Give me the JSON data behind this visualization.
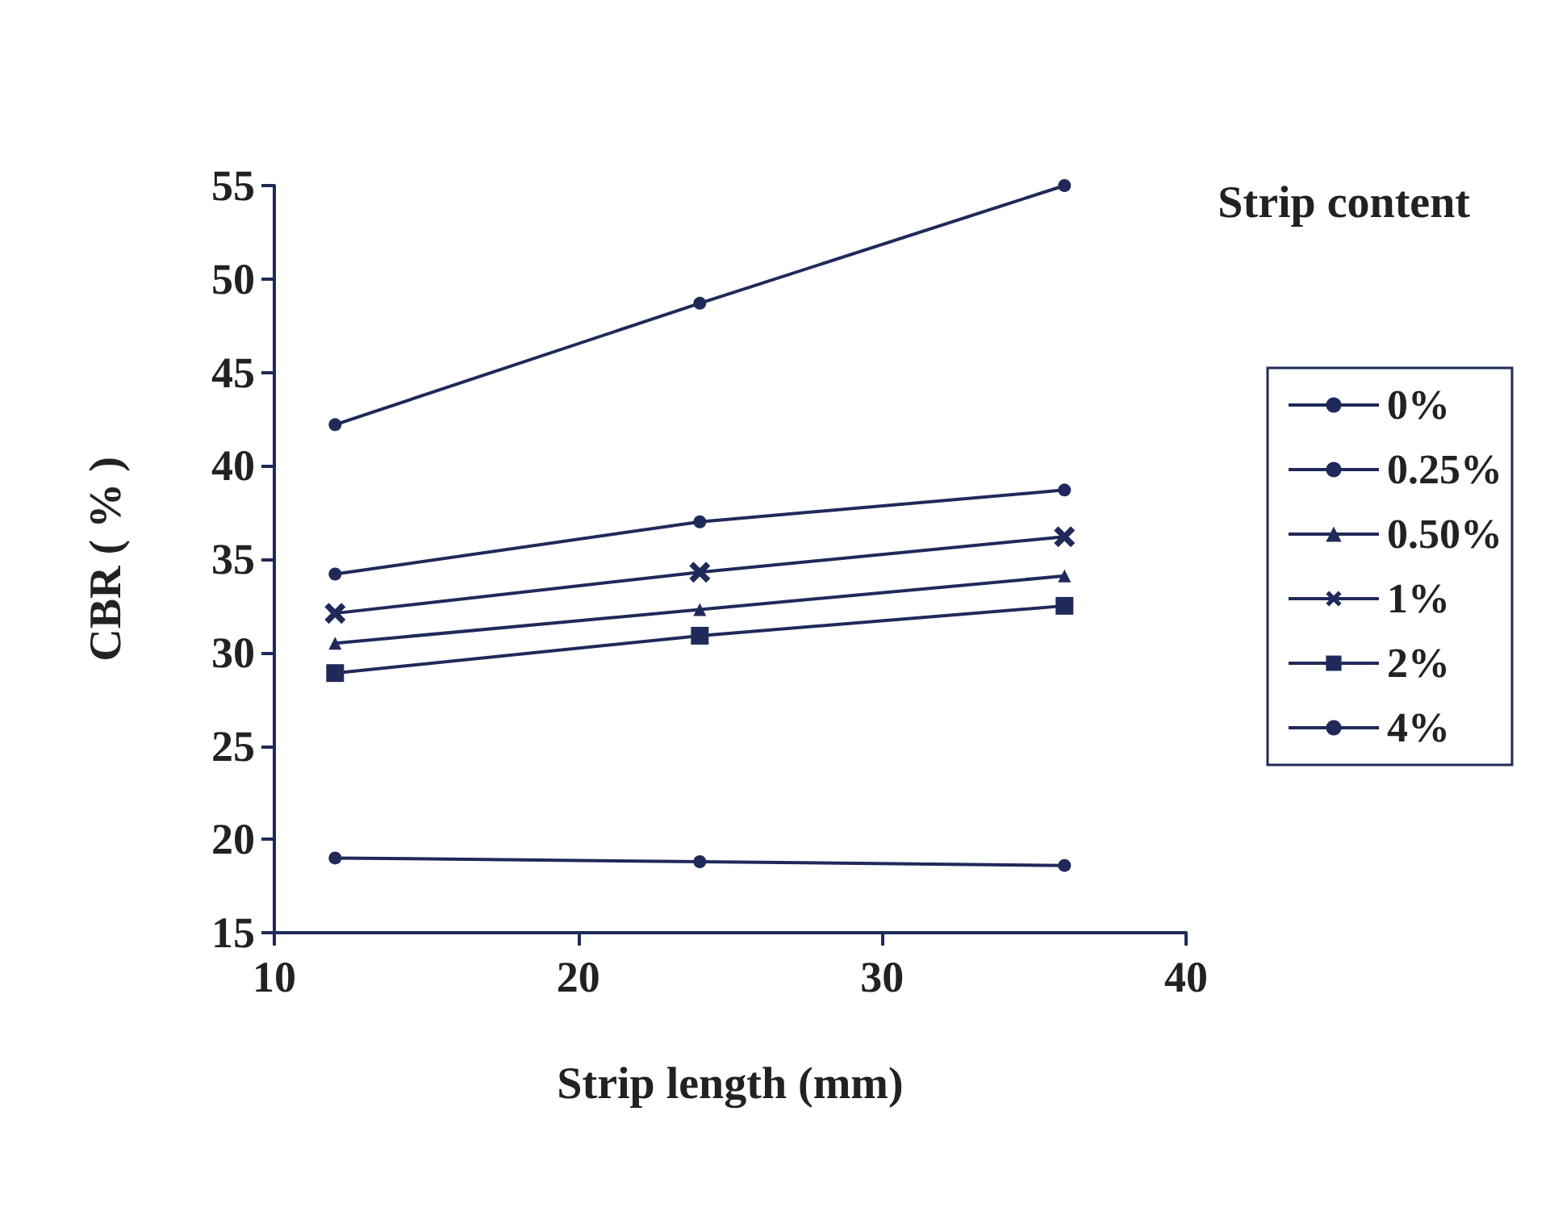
{
  "chart_data": {
    "type": "line",
    "xlabel": "Strip length (mm)",
    "ylabel": "CBR ( % )",
    "legend_title": "Strip content",
    "legend": "right",
    "grid": false,
    "xlim": [
      10,
      40
    ],
    "xticks": [
      10,
      20,
      30,
      40
    ],
    "ylim": [
      15,
      55
    ],
    "yticks": [
      15,
      20,
      25,
      30,
      35,
      40,
      45,
      50,
      55
    ],
    "x": [
      12,
      24,
      36
    ],
    "series": [
      {
        "name": "0%",
        "color": "#1f2a5a",
        "marker": "circle",
        "values": [
          19.0,
          18.8,
          18.6
        ]
      },
      {
        "name": "0.25%",
        "color": "#1f2a5a",
        "marker": "circle",
        "values": [
          34.2,
          37.0,
          38.7
        ]
      },
      {
        "name": "0.50%",
        "color": "#1f2a5a",
        "marker": "triangle",
        "values": [
          30.5,
          32.3,
          34.1
        ]
      },
      {
        "name": "1%",
        "color": "#1f2a5a",
        "marker": "cross",
        "values": [
          32.1,
          34.3,
          36.2
        ]
      },
      {
        "name": "2%",
        "color": "#1f2a5a",
        "marker": "square",
        "values": [
          28.9,
          30.9,
          32.5
        ]
      },
      {
        "name": "4%",
        "color": "#1f2a5a",
        "marker": "circle",
        "values": [
          42.2,
          48.7,
          55.0
        ]
      }
    ]
  }
}
